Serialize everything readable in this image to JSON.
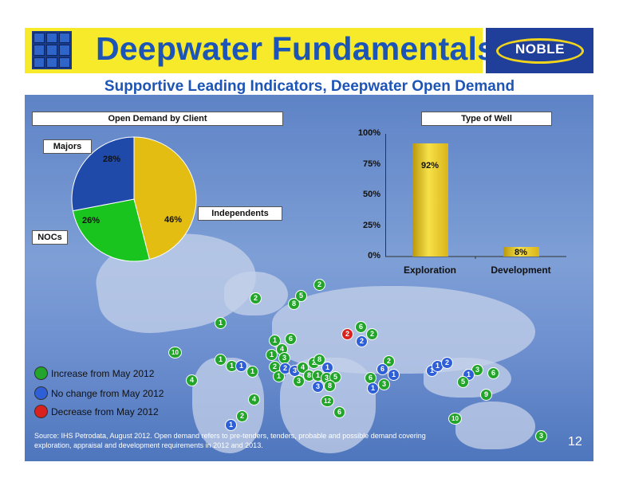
{
  "header": {
    "title": "Deepwater Fundamentals",
    "subtitle": "Supportive Leading Indicators, Deepwater Open Demand",
    "logo_text": "NOBLE"
  },
  "colors": {
    "title_blue": "#1d55b7",
    "header_yellow": "#f7ea2b",
    "logo_navy": "#1f3f9a",
    "increase": "#22a52a",
    "no_change": "#2e5fd6",
    "decrease": "#d9211d"
  },
  "pie_chart": {
    "title": "Open Demand by Client",
    "labels": {
      "majors": "Majors",
      "independents": "Independents",
      "nocs": "NOCs"
    },
    "values_text": {
      "majors": "28%",
      "independents": "46%",
      "nocs": "26%"
    }
  },
  "bar_chart": {
    "title": "Type of Well",
    "yticks": [
      "100%",
      "75%",
      "50%",
      "25%",
      "0%"
    ],
    "categories": [
      "Exploration",
      "Development"
    ],
    "value_labels": [
      "92%",
      "8%"
    ]
  },
  "chart_data": [
    {
      "type": "pie",
      "title": "Open Demand by Client",
      "slices": [
        {
          "name": "Independents",
          "value": 46
        },
        {
          "name": "NOCs",
          "value": 26
        },
        {
          "name": "Majors",
          "value": 28
        }
      ]
    },
    {
      "type": "bar",
      "title": "Type of Well",
      "categories": [
        "Exploration",
        "Development"
      ],
      "values": [
        92,
        8
      ],
      "ylim": [
        0,
        100
      ]
    }
  ],
  "map_markers": [
    {
      "v": "2",
      "s": "increase"
    },
    {
      "v": "8",
      "s": "increase"
    },
    {
      "v": "5",
      "s": "increase"
    },
    {
      "v": "2",
      "s": "increase"
    },
    {
      "v": "1",
      "s": "increase"
    },
    {
      "v": "10",
      "s": "increase"
    },
    {
      "v": "4",
      "s": "increase"
    },
    {
      "v": "1",
      "s": "increase"
    },
    {
      "v": "6",
      "s": "increase"
    },
    {
      "v": "4",
      "s": "increase"
    },
    {
      "v": "1",
      "s": "increase"
    },
    {
      "v": "3",
      "s": "increase"
    },
    {
      "v": "2",
      "s": "increase"
    },
    {
      "v": "1",
      "s": "increase"
    },
    {
      "v": "1",
      "s": "increase"
    },
    {
      "v": "1",
      "s": "increase"
    },
    {
      "v": "1",
      "s": "no_change"
    },
    {
      "v": "1",
      "s": "increase"
    },
    {
      "v": "2",
      "s": "no_change"
    },
    {
      "v": "3",
      "s": "no_change"
    },
    {
      "v": "4",
      "s": "increase"
    },
    {
      "v": "8",
      "s": "increase"
    },
    {
      "v": "2",
      "s": "increase"
    },
    {
      "v": "8",
      "s": "increase"
    },
    {
      "v": "1",
      "s": "no_change"
    },
    {
      "v": "1",
      "s": "increase"
    },
    {
      "v": "3",
      "s": "increase"
    },
    {
      "v": "5",
      "s": "increase"
    },
    {
      "v": "3",
      "s": "increase"
    },
    {
      "v": "3",
      "s": "no_change"
    },
    {
      "v": "8",
      "s": "increase"
    },
    {
      "v": "4",
      "s": "increase"
    },
    {
      "v": "12",
      "s": "increase"
    },
    {
      "v": "6",
      "s": "increase"
    },
    {
      "v": "2",
      "s": "increase"
    },
    {
      "v": "1",
      "s": "no_change"
    },
    {
      "v": "2",
      "s": "decrease"
    },
    {
      "v": "6",
      "s": "increase"
    },
    {
      "v": "2",
      "s": "increase"
    },
    {
      "v": "2",
      "s": "no_change"
    },
    {
      "v": "2",
      "s": "increase"
    },
    {
      "v": "6",
      "s": "no_change"
    },
    {
      "v": "6",
      "s": "increase"
    },
    {
      "v": "1",
      "s": "no_change"
    },
    {
      "v": "1",
      "s": "no_change"
    },
    {
      "v": "3",
      "s": "increase"
    },
    {
      "v": "1",
      "s": "no_change"
    },
    {
      "v": "1",
      "s": "no_change"
    },
    {
      "v": "2",
      "s": "no_change"
    },
    {
      "v": "3",
      "s": "increase"
    },
    {
      "v": "1",
      "s": "no_change"
    },
    {
      "v": "6",
      "s": "increase"
    },
    {
      "v": "5",
      "s": "increase"
    },
    {
      "v": "9",
      "s": "increase"
    },
    {
      "v": "10",
      "s": "increase"
    },
    {
      "v": "3",
      "s": "increase"
    }
  ],
  "legend": {
    "increase": "Increase from May 2012",
    "no_change": "No change from May 2012",
    "decrease": "Decrease from May 2012"
  },
  "footer": {
    "source": "Source: IHS Petrodata, August 2012. Open demand refers to pre-tenders, tenders, probable and possible demand covering exploration, appraisal and development requirements in 2012 and 2013.",
    "page_number": "12"
  }
}
